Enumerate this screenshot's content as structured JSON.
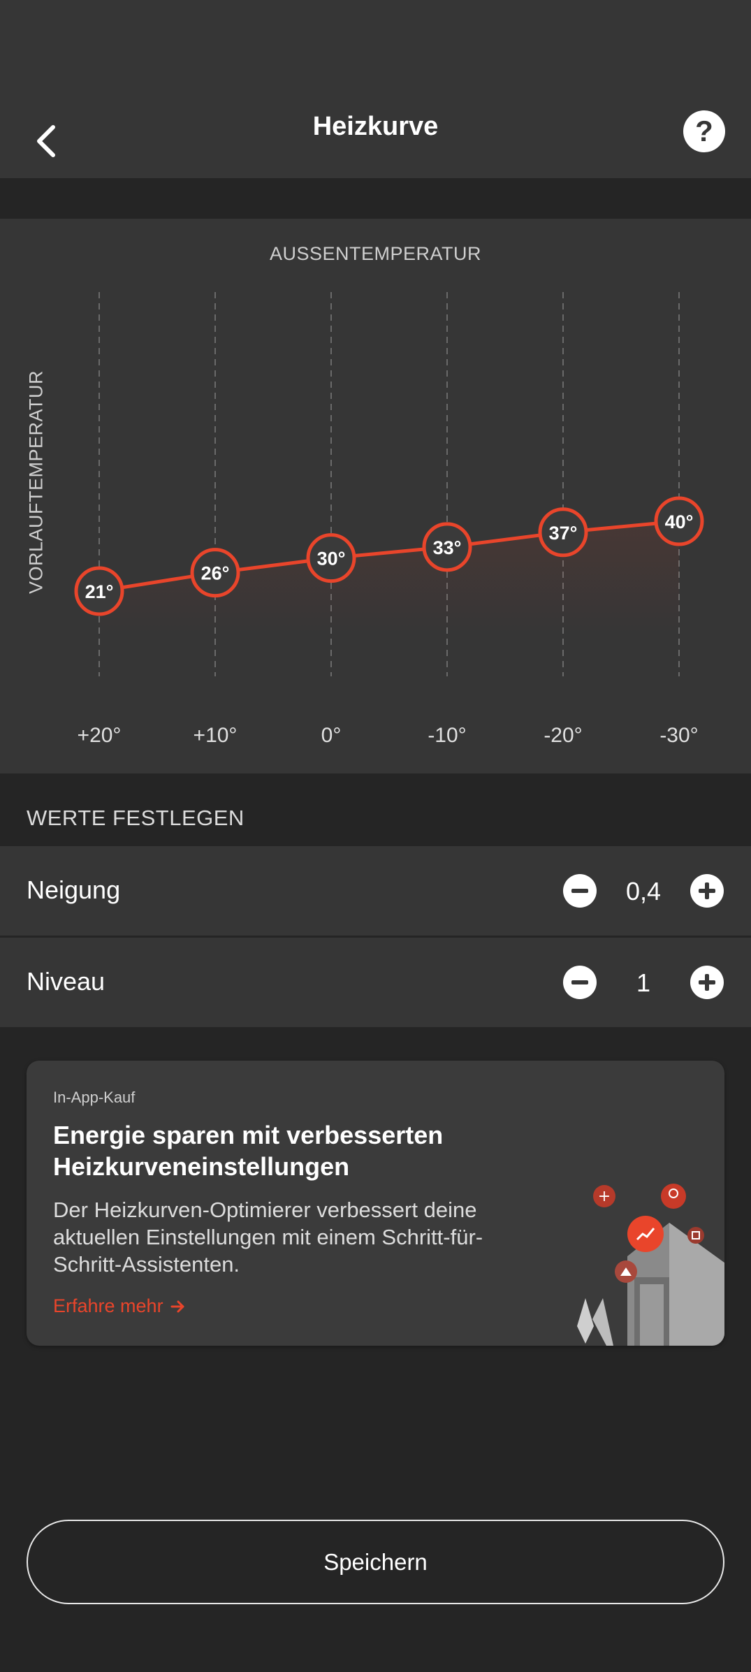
{
  "header": {
    "title": "Heizkurve"
  },
  "chart": {
    "x_axis_title": "AUSSENTEMPERATUR",
    "y_axis_title": "VORLAUFTEMPERATUR",
    "accent_color": "#e9452b"
  },
  "chart_data": {
    "type": "line",
    "x_labels": [
      "+20°",
      "+10°",
      "0°",
      "-10°",
      "-20°",
      "-30°"
    ],
    "x": [
      20,
      10,
      0,
      -10,
      -20,
      -30
    ],
    "values": [
      21,
      26,
      30,
      33,
      37,
      40
    ],
    "point_labels": [
      "21°",
      "26°",
      "30°",
      "33°",
      "37°",
      "40°"
    ],
    "grid": true
  },
  "settings": {
    "section_label": "WERTE FESTLEGEN",
    "neigung": {
      "label": "Neigung",
      "value": "0,4"
    },
    "niveau": {
      "label": "Niveau",
      "value": "1"
    }
  },
  "promo": {
    "tag": "In-App-Kauf",
    "title": "Energie sparen mit verbesserten Heizkurveneinstellungen",
    "description": "Der Heizkurven-Optimierer verbessert deine aktuellen Einstellungen mit einem Schritt-für-Schritt-Assistenten.",
    "link_label": "Erfahre mehr"
  },
  "footer": {
    "save_label": "Speichern"
  }
}
